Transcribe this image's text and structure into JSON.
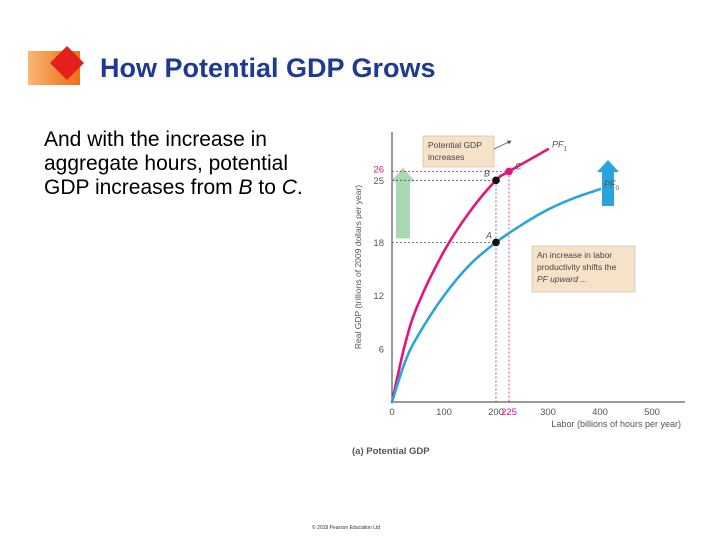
{
  "slide": {
    "title": "How Potential GDP Grows",
    "body": {
      "part1": "And with the increase in aggregate hours, potential GDP increases from ",
      "point_from": "B",
      "part2": " to ",
      "point_to": "C",
      "part3": "."
    },
    "copyright": "© 2018 Pearson Education Ltd"
  },
  "colors": {
    "title": "#1f3a93",
    "accent_orange": "#f28c38",
    "accent_red": "#e3201b",
    "pf1": "#e0157e",
    "pf0": "#2ba4dc",
    "arrow_green": "#a9d9b2",
    "arrow_blue": "#2ba4dc",
    "callout_bg": "#f6e2c8"
  },
  "chart_data": {
    "type": "line",
    "caption": "(a) Potential GDP",
    "xlabel": "Labor (billions of hours per year)",
    "ylabel": "Real GDP (trillions of 2009 dollars per year)",
    "xlim": [
      0,
      500
    ],
    "ylim": [
      0,
      30
    ],
    "x_ticks": [
      "0",
      "100",
      "200",
      "300",
      "400",
      "500"
    ],
    "y_ticks": [
      "6",
      "12",
      "18",
      "25"
    ],
    "grid": false,
    "series": [
      {
        "name": "PF1",
        "label_main": "PF",
        "label_sub": "1",
        "x": [
          0,
          25,
          50,
          100,
          150,
          200,
          225,
          300
        ],
        "y": [
          0,
          6.5,
          11,
          17,
          21.5,
          25,
          26,
          28.5
        ]
      },
      {
        "name": "PF0",
        "label_main": "PF",
        "label_sub": "0",
        "x": [
          0,
          25,
          50,
          100,
          150,
          200,
          250,
          300,
          350,
          400
        ],
        "y": [
          0,
          4.5,
          7.5,
          12,
          15.5,
          18,
          20,
          21.7,
          23,
          24
        ]
      }
    ],
    "points": [
      {
        "label": "A",
        "x": 200,
        "y": 18,
        "color": "black"
      },
      {
        "label": "B",
        "x": 200,
        "y": 25,
        "color": "black"
      },
      {
        "label": "C",
        "x": 225,
        "y": 26,
        "color": "pink"
      }
    ],
    "highlight_ticks": {
      "y": "26",
      "x": "225"
    },
    "annotations": [
      {
        "text_lines": [
          "Potential GDP",
          "increases"
        ]
      },
      {
        "text_lines": [
          "An increase in labor",
          "productivity shifts the",
          "PF upward ..."
        ]
      }
    ]
  }
}
